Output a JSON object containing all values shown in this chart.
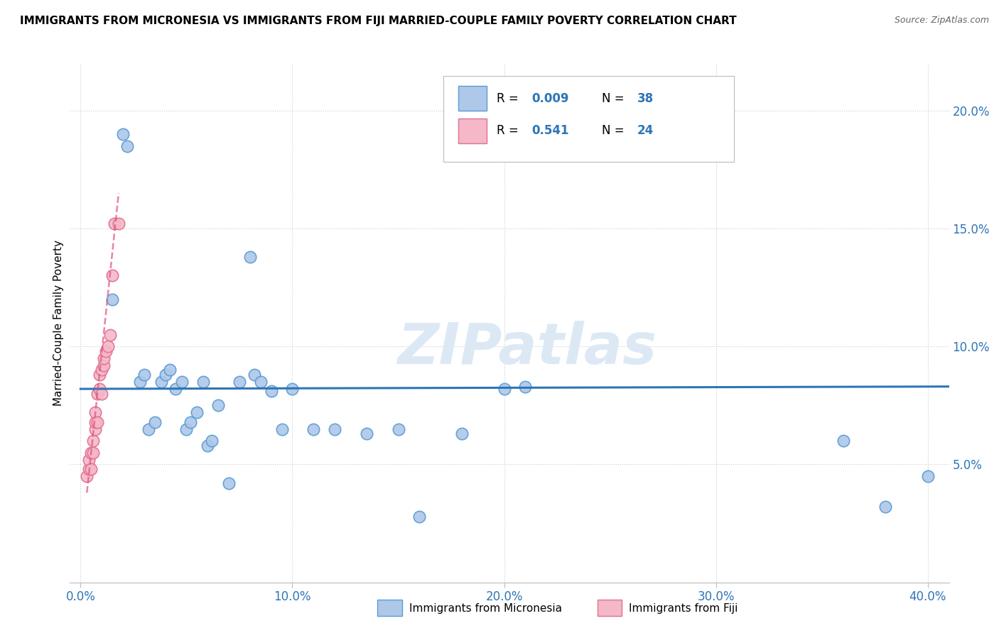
{
  "title": "IMMIGRANTS FROM MICRONESIA VS IMMIGRANTS FROM FIJI MARRIED-COUPLE FAMILY POVERTY CORRELATION CHART",
  "source": "Source: ZipAtlas.com",
  "ylabel": "Married-Couple Family Poverty",
  "xlabel_ticks": [
    "0.0%",
    "10.0%",
    "20.0%",
    "30.0%",
    "40.0%"
  ],
  "xlabel_tick_vals": [
    0.0,
    0.1,
    0.2,
    0.3,
    0.4
  ],
  "ylabel_ticks": [
    "5.0%",
    "10.0%",
    "15.0%",
    "20.0%"
  ],
  "ylabel_tick_vals": [
    0.05,
    0.1,
    0.15,
    0.2
  ],
  "xlim": [
    -0.005,
    0.41
  ],
  "ylim": [
    0.0,
    0.22
  ],
  "blue_R": "0.009",
  "blue_N": "38",
  "pink_R": "0.541",
  "pink_N": "24",
  "blue_color": "#adc8e8",
  "blue_edge_color": "#5b9bd5",
  "pink_color": "#f4b8c8",
  "pink_edge_color": "#e07090",
  "blue_line_color": "#2E75B6",
  "pink_line_color": "#e05080",
  "watermark_color": "#dce9f5",
  "blue_scatter_x": [
    0.015,
    0.02,
    0.022,
    0.028,
    0.03,
    0.032,
    0.035,
    0.038,
    0.04,
    0.042,
    0.045,
    0.048,
    0.05,
    0.052,
    0.055,
    0.058,
    0.06,
    0.062,
    0.065,
    0.07,
    0.075,
    0.08,
    0.082,
    0.085,
    0.09,
    0.095,
    0.1,
    0.11,
    0.12,
    0.135,
    0.15,
    0.16,
    0.18,
    0.2,
    0.21,
    0.36,
    0.38,
    0.4
  ],
  "blue_scatter_y": [
    0.12,
    0.19,
    0.185,
    0.085,
    0.088,
    0.065,
    0.068,
    0.085,
    0.088,
    0.09,
    0.082,
    0.085,
    0.065,
    0.068,
    0.072,
    0.085,
    0.058,
    0.06,
    0.075,
    0.042,
    0.085,
    0.138,
    0.088,
    0.085,
    0.081,
    0.065,
    0.082,
    0.065,
    0.065,
    0.063,
    0.065,
    0.028,
    0.063,
    0.082,
    0.083,
    0.06,
    0.032,
    0.045
  ],
  "pink_scatter_x": [
    0.003,
    0.004,
    0.004,
    0.005,
    0.005,
    0.006,
    0.006,
    0.007,
    0.007,
    0.007,
    0.008,
    0.008,
    0.009,
    0.009,
    0.01,
    0.01,
    0.011,
    0.011,
    0.012,
    0.013,
    0.014,
    0.015,
    0.016,
    0.018
  ],
  "pink_scatter_y": [
    0.045,
    0.048,
    0.052,
    0.048,
    0.055,
    0.055,
    0.06,
    0.065,
    0.068,
    0.072,
    0.068,
    0.08,
    0.082,
    0.088,
    0.08,
    0.09,
    0.092,
    0.095,
    0.098,
    0.1,
    0.105,
    0.13,
    0.152,
    0.152
  ],
  "blue_trend_x": [
    0.0,
    0.41
  ],
  "blue_trend_y": [
    0.082,
    0.083
  ],
  "pink_trend_x": [
    0.003,
    0.018
  ],
  "pink_trend_y": [
    0.038,
    0.165
  ],
  "legend_blue_label1": "R = ",
  "legend_blue_R": "0.009",
  "legend_blue_N_label": "N = ",
  "legend_blue_N": "38",
  "legend_pink_R": "0.541",
  "legend_pink_N": "24"
}
